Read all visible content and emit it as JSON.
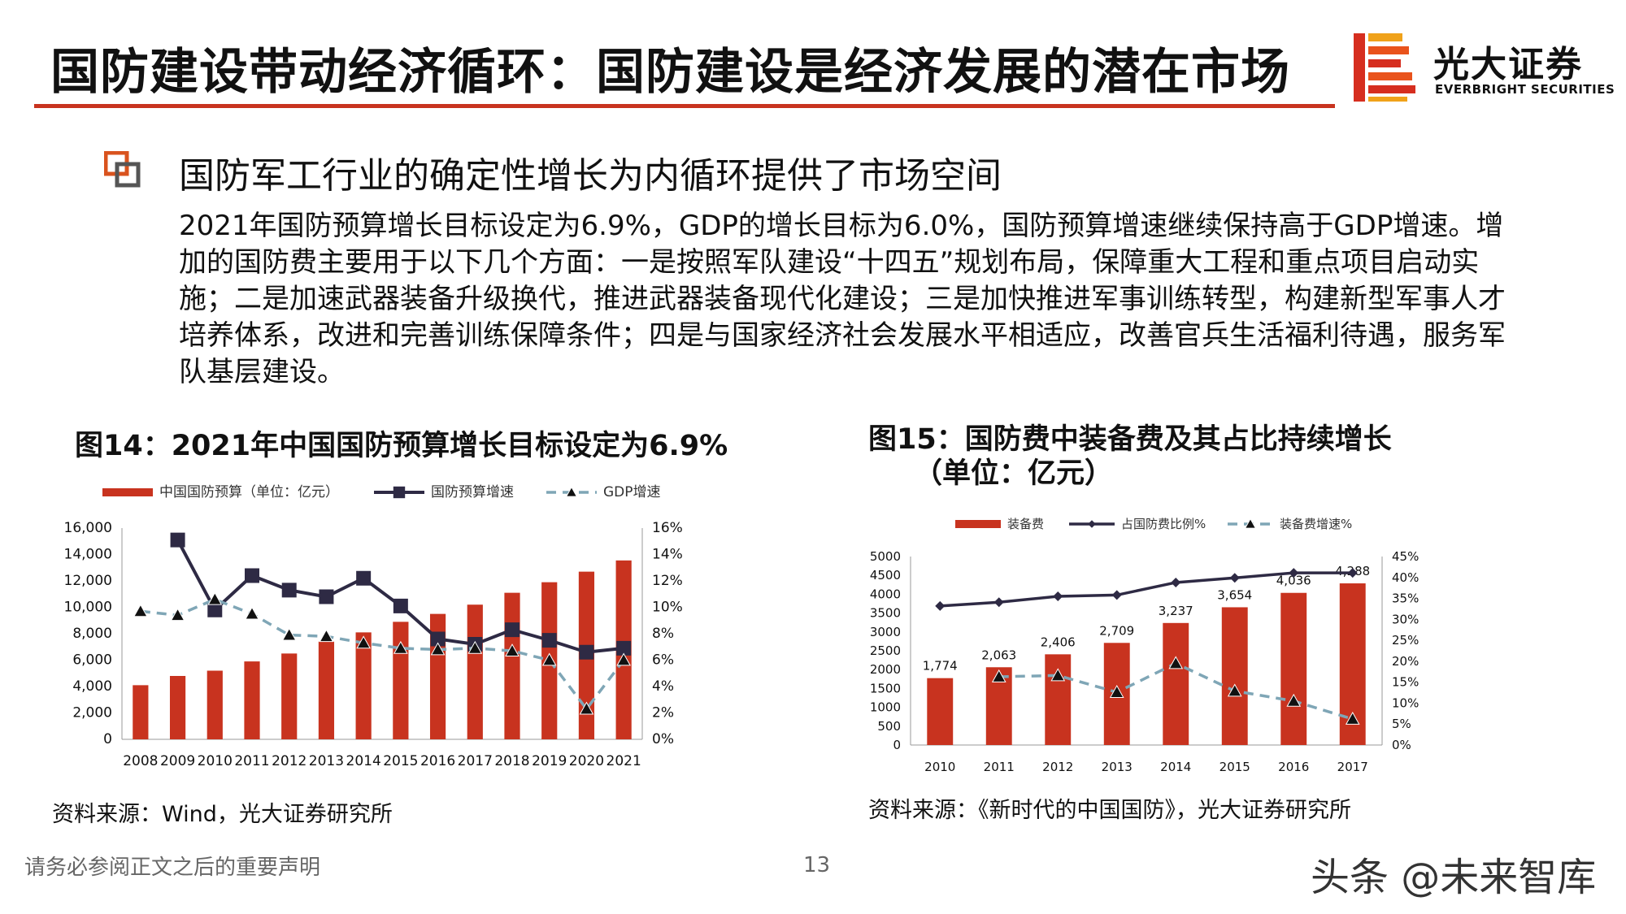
{
  "header": {
    "title": "国防建设带动经济循环：国防建设是经济发展的潜在市场",
    "logo_name": "光大证券",
    "logo_sub": "EVERBRIGHT SECURITIES"
  },
  "section": {
    "heading": "国防军工行业的确定性增长为内循环提供了市场空间",
    "body": "2021年国防预算增长目标设定为6.9%，GDP的增长目标为6.0%，国防预算增速继续保持高于GDP增速。增加的国防费主要用于以下几个方面：一是按照军队建设“十四五”规划布局，保障重大工程和重点项目启动实施；二是加速武器装备升级换代，推进武器装备现代化建设；三是加快推进军事训练转型，构建新型军事人才培养体系，改进和完善训练保障条件；四是与国家经济社会发展水平相适应，改善官兵生活福利待遇，服务军队基层建设。"
  },
  "figures": {
    "fig14_title": "图14：2021年中国国防预算增长目标设定为6.9%",
    "fig14_source": "资料来源：Wind，光大证券研究所",
    "fig15_title_line1": "图15：国防费中装备费及其占比持续增长",
    "fig15_title_line2": "（单位：亿元）",
    "fig15_source": "资料来源：《新时代的中国国防》，光大证券研究所"
  },
  "footer": {
    "disclaimer": "请务必参阅正文之后的重要声明",
    "page_number": "13",
    "watermark": "头条 @未来智库"
  },
  "colors": {
    "accent": "#c8331f",
    "bar": "#c8331f",
    "line_dark": "#2e2a44",
    "line_light": "#7fa6b6"
  },
  "chart_data": [
    {
      "type": "bar",
      "categories": [
        "2008",
        "2009",
        "2010",
        "2011",
        "2012",
        "2013",
        "2014",
        "2015",
        "2016",
        "2017",
        "2018",
        "2019",
        "2020",
        "2021"
      ],
      "series": [
        {
          "name": "中国国防预算（单位：亿元）",
          "type": "bar",
          "axis": "left",
          "values": [
            4100,
            4800,
            5200,
            5900,
            6500,
            7400,
            8100,
            8900,
            9500,
            10200,
            11100,
            11900,
            12700,
            13550
          ]
        },
        {
          "name": "国防预算增速",
          "type": "line",
          "axis": "right",
          "values": [
            null,
            15.1,
            9.8,
            12.4,
            11.3,
            10.8,
            12.2,
            10.1,
            7.6,
            7.2,
            8.3,
            7.5,
            6.6,
            6.9
          ]
        },
        {
          "name": "GDP增速",
          "type": "line",
          "axis": "right",
          "values": [
            9.7,
            9.4,
            10.6,
            9.5,
            7.9,
            7.8,
            7.3,
            6.9,
            6.8,
            6.9,
            6.7,
            6.0,
            2.3,
            6.0
          ]
        }
      ],
      "y_left": {
        "min": 0,
        "max": 16000,
        "ticks": [
          "0",
          "2,000",
          "4,000",
          "6,000",
          "8,000",
          "10,000",
          "12,000",
          "14,000",
          "16,000"
        ]
      },
      "y_right": {
        "min": 0,
        "max": 16,
        "ticks": [
          "0%",
          "2%",
          "4%",
          "6%",
          "8%",
          "10%",
          "12%",
          "14%",
          "16%"
        ]
      },
      "legend": "top"
    },
    {
      "type": "bar",
      "categories": [
        "2010",
        "2011",
        "2012",
        "2013",
        "2014",
        "2015",
        "2016",
        "2017"
      ],
      "series": [
        {
          "name": "装备费",
          "type": "bar",
          "axis": "left",
          "values": [
            1774,
            2063,
            2406,
            2709,
            3237,
            3654,
            4036,
            4288
          ],
          "labels": [
            "1,774",
            "2,063",
            "2,406",
            "2,709",
            "3,237",
            "3,654",
            "4,036",
            "4,288"
          ]
        },
        {
          "name": "占国防费比例%",
          "type": "line",
          "axis": "right",
          "values": [
            33.2,
            34.1,
            35.5,
            35.8,
            38.8,
            39.9,
            41.1,
            41.1
          ]
        },
        {
          "name": "装备费增速%",
          "type": "line",
          "axis": "right",
          "values": [
            null,
            16.3,
            16.6,
            12.6,
            19.5,
            12.9,
            10.5,
            6.2
          ]
        }
      ],
      "y_left": {
        "min": 0,
        "max": 5000,
        "ticks": [
          "0",
          "500",
          "1000",
          "1500",
          "2000",
          "2500",
          "3000",
          "3500",
          "4000",
          "4500",
          "5000"
        ]
      },
      "y_right": {
        "min": 0,
        "max": 45,
        "ticks": [
          "0%",
          "5%",
          "10%",
          "15%",
          "20%",
          "25%",
          "30%",
          "35%",
          "40%",
          "45%"
        ]
      },
      "legend": "top"
    }
  ]
}
